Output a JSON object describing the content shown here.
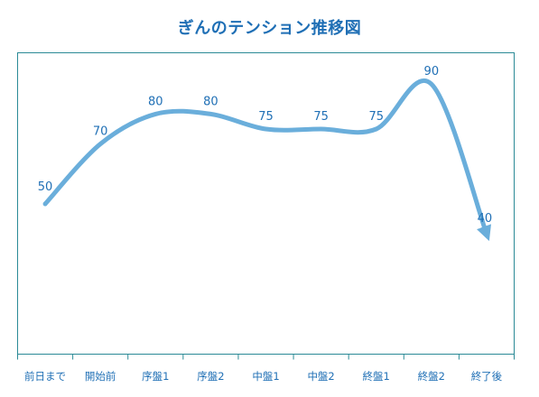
{
  "chart_data": {
    "type": "line",
    "title": "ぎんのテンション推移図",
    "categories": [
      "前日まで",
      "開始前",
      "序盤1",
      "序盤2",
      "中盤1",
      "中盤2",
      "終盤1",
      "終盤2",
      "終了後"
    ],
    "series": [
      {
        "values": [
          50,
          70,
          80,
          80,
          75,
          75,
          75,
          90,
          40
        ]
      }
    ],
    "data_labels": [
      "50",
      "70",
      "80",
      "80",
      "75",
      "75",
      "75",
      "90",
      "40"
    ],
    "ylim": [
      0,
      100
    ],
    "grid": false,
    "legend": "none",
    "smooth": true,
    "line_end": "arrow",
    "colors": {
      "line": "#6aaedb",
      "frame": "#2b8a96",
      "text": "#1f6fb5"
    }
  }
}
